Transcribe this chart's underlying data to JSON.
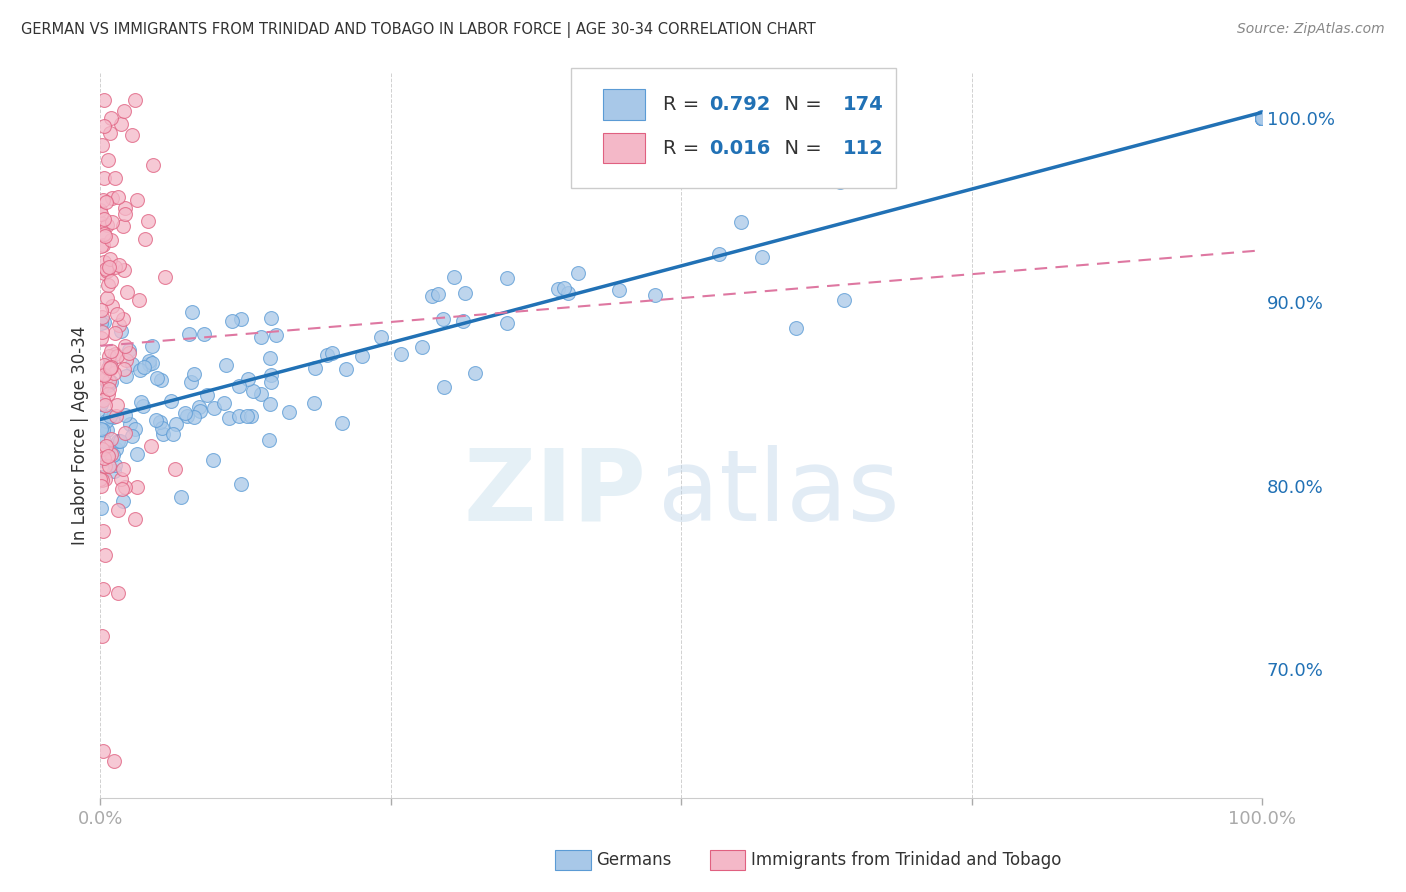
{
  "title": "GERMAN VS IMMIGRANTS FROM TRINIDAD AND TOBAGO IN LABOR FORCE | AGE 30-34 CORRELATION CHART",
  "source": "Source: ZipAtlas.com",
  "ylabel": "In Labor Force | Age 30-34",
  "xmin": 0.0,
  "xmax": 1.0,
  "ymin": 0.63,
  "ymax": 1.025,
  "blue_color": "#a8c8e8",
  "blue_edge_color": "#5b9bd5",
  "pink_color": "#f4b8c8",
  "pink_edge_color": "#e06080",
  "blue_line_color": "#2171b5",
  "pink_line_color": "#de77a1",
  "blue_R": "0.792",
  "blue_N": "174",
  "pink_R": "0.016",
  "pink_N": "112",
  "blue_line_x": [
    0.0,
    1.0
  ],
  "blue_line_y": [
    0.836,
    1.003
  ],
  "pink_line_x": [
    0.0,
    1.0
  ],
  "pink_line_y": [
    0.876,
    0.928
  ],
  "watermark_zip": "ZIP",
  "watermark_atlas": "atlas",
  "legend_label_blue": "Germans",
  "legend_label_pink": "Immigrants from Trinidad and Tobago",
  "background_color": "#ffffff",
  "grid_color": "#cccccc",
  "title_color": "#333333",
  "tick_color": "#2171b5",
  "blue_seed": 42,
  "pink_seed": 99
}
